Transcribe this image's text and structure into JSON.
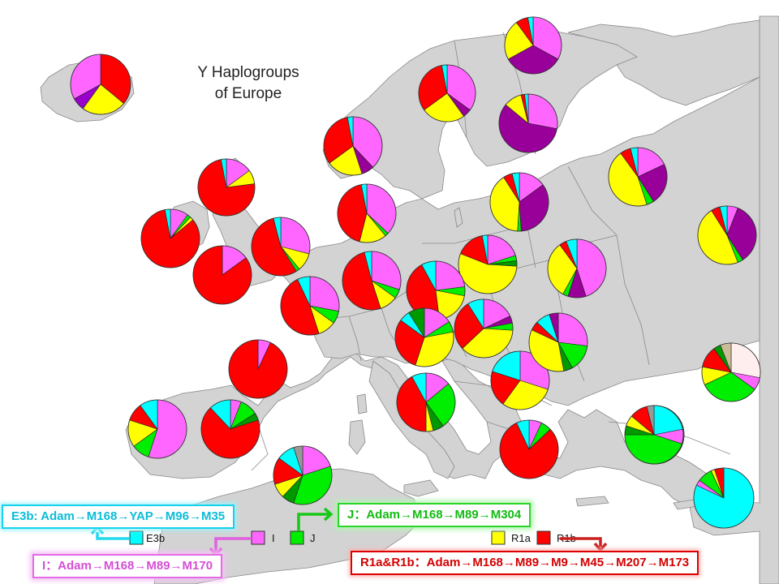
{
  "title": {
    "line1": "Y Haplogroups",
    "line2": "of Europe"
  },
  "colors": {
    "sea": "#ffffff",
    "land": "#d3d3d3",
    "border": "#888888",
    "E3b": "#00ffff",
    "I": "#ff66ff",
    "J": "#00ee00",
    "R1a": "#ffff00",
    "R1b": "#ff0000",
    "N": "#990099",
    "G": "#009900",
    "other1": "#9900cc",
    "other2": "#ccbb99",
    "other3": "#ffeeee",
    "other4": "#999999"
  },
  "legend": [
    {
      "label": "E3b",
      "color": "#00ffff"
    },
    {
      "label": "I",
      "color": "#ff66ff"
    },
    {
      "label": "J",
      "color": "#00ee00"
    },
    {
      "label": "R1a",
      "color": "#ffff00"
    },
    {
      "label": "R1b",
      "color": "#ff0000"
    }
  ],
  "lineages": {
    "e3b": "E3b: Adam→M168→YAP→M96→M35",
    "j": "J：Adam→M168→M89→M304",
    "i": "I：Adam→M168→M89→M170",
    "r": "R1a&R1b：Adam→M168→M89→M9→M45→M207→M173"
  },
  "pies": [
    {
      "region": "Iceland",
      "slices": [
        [
          "R1b",
          0.36
        ],
        [
          "R1a",
          0.24
        ],
        [
          "other1",
          0.07
        ],
        [
          "I",
          0.33
        ]
      ]
    },
    {
      "region": "Norway (north)",
      "slices": [
        [
          "I",
          0.33
        ],
        [
          "N",
          0.34
        ],
        [
          "R1a",
          0.23
        ],
        [
          "R1b",
          0.07
        ],
        [
          "E3b",
          0.03
        ]
      ]
    },
    {
      "region": "Norway",
      "slices": [
        [
          "I",
          0.35
        ],
        [
          "N",
          0.05
        ],
        [
          "R1a",
          0.25
        ],
        [
          "R1b",
          0.32
        ],
        [
          "E3b",
          0.03
        ]
      ]
    },
    {
      "region": "Finland",
      "slices": [
        [
          "I",
          0.28
        ],
        [
          "N",
          0.58
        ],
        [
          "R1a",
          0.1
        ],
        [
          "R1b",
          0.02
        ],
        [
          "E3b",
          0.02
        ]
      ]
    },
    {
      "region": "Sweden",
      "slices": [
        [
          "I",
          0.38
        ],
        [
          "N",
          0.07
        ],
        [
          "R1a",
          0.2
        ],
        [
          "R1b",
          0.32
        ],
        [
          "E3b",
          0.03
        ]
      ]
    },
    {
      "region": "Scotland",
      "slices": [
        [
          "I",
          0.15
        ],
        [
          "R1a",
          0.08
        ],
        [
          "R1b",
          0.74
        ],
        [
          "E3b",
          0.03
        ]
      ]
    },
    {
      "region": "Denmark",
      "slices": [
        [
          "I",
          0.37
        ],
        [
          "J",
          0.02
        ],
        [
          "R1a",
          0.15
        ],
        [
          "R1b",
          0.43
        ],
        [
          "E3b",
          0.03
        ]
      ]
    },
    {
      "region": "Estonia",
      "slices": [
        [
          "I",
          0.15
        ],
        [
          "N",
          0.34
        ],
        [
          "J",
          0.02
        ],
        [
          "R1a",
          0.4
        ],
        [
          "R1b",
          0.05
        ],
        [
          "E3b",
          0.04
        ]
      ]
    },
    {
      "region": "Russia (north)",
      "slices": [
        [
          "I",
          0.18
        ],
        [
          "N",
          0.23
        ],
        [
          "J",
          0.04
        ],
        [
          "R1a",
          0.45
        ],
        [
          "R1b",
          0.06
        ],
        [
          "E3b",
          0.04
        ]
      ]
    },
    {
      "region": "Russia (east)",
      "slices": [
        [
          "I",
          0.06
        ],
        [
          "N",
          0.35
        ],
        [
          "J",
          0.03
        ],
        [
          "R1a",
          0.47
        ],
        [
          "R1b",
          0.05
        ],
        [
          "E3b",
          0.04
        ]
      ]
    },
    {
      "region": "Ireland",
      "slices": [
        [
          "I",
          0.1
        ],
        [
          "J",
          0.02
        ],
        [
          "R1a",
          0.02
        ],
        [
          "R1b",
          0.83
        ],
        [
          "E3b",
          0.03
        ]
      ]
    },
    {
      "region": "England",
      "slices": [
        [
          "I",
          0.29
        ],
        [
          "R1a",
          0.1
        ],
        [
          "J",
          0.02
        ],
        [
          "R1b",
          0.55
        ],
        [
          "E3b",
          0.04
        ]
      ]
    },
    {
      "region": "Wales",
      "slices": [
        [
          "I",
          0.15
        ],
        [
          "R1b",
          0.85
        ]
      ]
    },
    {
      "region": "Netherlands",
      "slices": [
        [
          "I",
          0.3
        ],
        [
          "J",
          0.05
        ],
        [
          "R1a",
          0.1
        ],
        [
          "R1b",
          0.51
        ],
        [
          "E3b",
          0.04
        ]
      ]
    },
    {
      "region": "Poland",
      "slices": [
        [
          "I",
          0.2
        ],
        [
          "J",
          0.03
        ],
        [
          "G",
          0.03
        ],
        [
          "R1a",
          0.55
        ],
        [
          "R1b",
          0.16
        ],
        [
          "E3b",
          0.03
        ]
      ]
    },
    {
      "region": "Belarus",
      "slices": [
        [
          "I",
          0.45
        ],
        [
          "N",
          0.1
        ],
        [
          "J",
          0.03
        ],
        [
          "R1a",
          0.32
        ],
        [
          "R1b",
          0.04
        ],
        [
          "E3b",
          0.06
        ]
      ]
    },
    {
      "region": "Belgium",
      "slices": [
        [
          "I",
          0.28
        ],
        [
          "J",
          0.07
        ],
        [
          "R1a",
          0.1
        ],
        [
          "R1b",
          0.48
        ],
        [
          "E3b",
          0.07
        ]
      ]
    },
    {
      "region": "Germany",
      "slices": [
        [
          "I",
          0.23
        ],
        [
          "J",
          0.05
        ],
        [
          "R1a",
          0.2
        ],
        [
          "R1b",
          0.44
        ],
        [
          "E3b",
          0.08
        ]
      ]
    },
    {
      "region": "Czech Republic",
      "slices": [
        [
          "I",
          0.18
        ],
        [
          "N",
          0.04
        ],
        [
          "J",
          0.04
        ],
        [
          "R1a",
          0.37
        ],
        [
          "R1b",
          0.28
        ],
        [
          "E3b",
          0.09
        ]
      ]
    },
    {
      "region": "France",
      "slices": [
        [
          "I",
          0.07
        ],
        [
          "R1b",
          0.93
        ]
      ]
    },
    {
      "region": "Switzerland",
      "slices": [
        [
          "I",
          0.16
        ],
        [
          "J",
          0.06
        ],
        [
          "R1a",
          0.33
        ],
        [
          "R1b",
          0.3
        ],
        [
          "E3b",
          0.06
        ],
        [
          "G",
          0.09
        ]
      ]
    },
    {
      "region": "Hungary",
      "slices": [
        [
          "I",
          0.3
        ],
        [
          "R1a",
          0.3
        ],
        [
          "R1b",
          0.2
        ],
        [
          "E3b",
          0.2
        ]
      ]
    },
    {
      "region": "Ukraine",
      "slices": [
        [
          "I",
          0.27
        ],
        [
          "J",
          0.15
        ],
        [
          "G",
          0.05
        ],
        [
          "R1a",
          0.35
        ],
        [
          "R1b",
          0.05
        ],
        [
          "E3b",
          0.08
        ],
        [
          "N",
          0.05
        ]
      ]
    },
    {
      "region": "Caucasus",
      "slices": [
        [
          "other3",
          0.28
        ],
        [
          "I",
          0.07
        ],
        [
          "J",
          0.33
        ],
        [
          "R1a",
          0.1
        ],
        [
          "R1b",
          0.12
        ],
        [
          "G",
          0.04
        ],
        [
          "other2",
          0.06
        ]
      ]
    },
    {
      "region": "Italy (north)",
      "slices": [
        [
          "I",
          0.14
        ],
        [
          "J",
          0.26
        ],
        [
          "G",
          0.06
        ],
        [
          "R1a",
          0.04
        ],
        [
          "R1b",
          0.42
        ],
        [
          "E3b",
          0.08
        ]
      ]
    },
    {
      "region": "Balkans",
      "slices": [
        [
          "I",
          0.55
        ],
        [
          "J",
          0.1
        ],
        [
          "R1a",
          0.15
        ],
        [
          "R1b",
          0.1
        ],
        [
          "E3b",
          0.1
        ]
      ]
    },
    {
      "region": "Iberia (west)",
      "slices": [
        [
          "I",
          0.06
        ],
        [
          "J",
          0.1
        ],
        [
          "G",
          0.04
        ],
        [
          "R1b",
          0.68
        ],
        [
          "E3b",
          0.12
        ]
      ]
    },
    {
      "region": "Spain",
      "slices": [
        [
          "I",
          0.07
        ],
        [
          "J",
          0.06
        ],
        [
          "R1b",
          0.8
        ],
        [
          "E3b",
          0.07
        ]
      ]
    },
    {
      "region": "Greece",
      "slices": [
        [
          "I",
          0.05
        ],
        [
          "J",
          0.28
        ],
        [
          "R1a",
          0.17
        ],
        [
          "R1b",
          0.14
        ],
        [
          "E3b",
          0.36
        ]
      ]
    },
    {
      "region": "Anatolia (west)",
      "slices": [
        [
          "I",
          0.2
        ],
        [
          "J",
          0.35
        ],
        [
          "G",
          0.07
        ],
        [
          "R1a",
          0.08
        ],
        [
          "R1b",
          0.15
        ],
        [
          "E3b",
          0.1
        ],
        [
          "other4",
          0.05
        ]
      ]
    },
    {
      "region": "North Africa",
      "slices": [
        [
          "E3b",
          0.82
        ],
        [
          "I",
          0.03
        ],
        [
          "J",
          0.08
        ],
        [
          "R1a",
          0.02
        ],
        [
          "R1b",
          0.05
        ]
      ]
    },
    {
      "region": "Levant",
      "slices": [
        [
          "E3b",
          0.22
        ],
        [
          "I",
          0.08
        ],
        [
          "J",
          0.45
        ],
        [
          "G",
          0.05
        ],
        [
          "R1a",
          0.06
        ],
        [
          "R1b",
          0.1
        ],
        [
          "other4",
          0.04
        ]
      ]
    }
  ]
}
